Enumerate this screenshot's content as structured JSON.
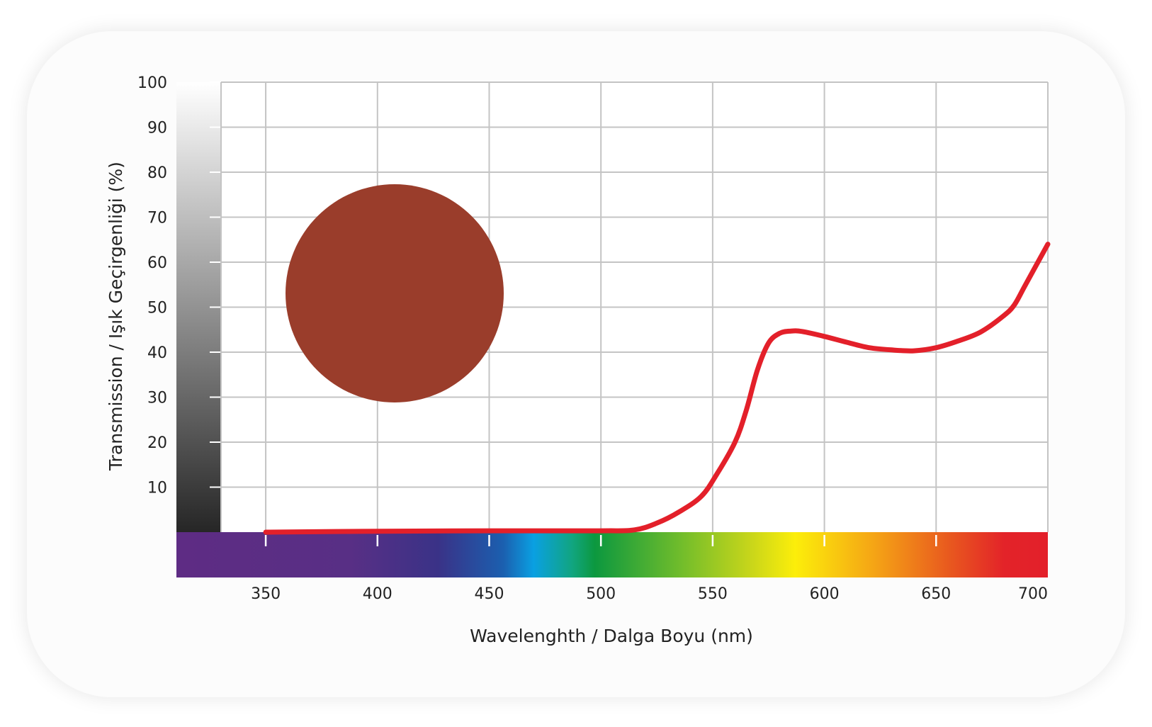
{
  "chart_data": {
    "type": "line",
    "xlabel": "Wavelenghth / Dalga Boyu (nm)",
    "ylabel": "Transmission / Işık Geçirgenliği (%)",
    "xlim": [
      330,
      700
    ],
    "ylim": [
      0,
      100
    ],
    "x_ticks": [
      "350",
      "400",
      "450",
      "500",
      "550",
      "600",
      "650",
      "700"
    ],
    "y_ticks": [
      "10",
      "20",
      "30",
      "40",
      "50",
      "60",
      "70",
      "80",
      "90",
      "100"
    ],
    "grid": true,
    "series": [
      {
        "color": "#e3202a",
        "points": [
          [
            350,
            0
          ],
          [
            400,
            0.2
          ],
          [
            450,
            0.3
          ],
          [
            500,
            0.3
          ],
          [
            515,
            0.5
          ],
          [
            525,
            2
          ],
          [
            535,
            4.5
          ],
          [
            545,
            8
          ],
          [
            552,
            13
          ],
          [
            560,
            20
          ],
          [
            565,
            27
          ],
          [
            570,
            36
          ],
          [
            575,
            42
          ],
          [
            580,
            44.2
          ],
          [
            585,
            44.7
          ],
          [
            590,
            44.6
          ],
          [
            600,
            43.5
          ],
          [
            610,
            42.2
          ],
          [
            620,
            41
          ],
          [
            630,
            40.5
          ],
          [
            640,
            40.3
          ],
          [
            650,
            41
          ],
          [
            660,
            42.5
          ],
          [
            670,
            44.5
          ],
          [
            680,
            48
          ],
          [
            685,
            50.5
          ],
          [
            690,
            55
          ],
          [
            700,
            64
          ]
        ]
      }
    ],
    "sample_swatch_color": "#9a3d2b"
  }
}
